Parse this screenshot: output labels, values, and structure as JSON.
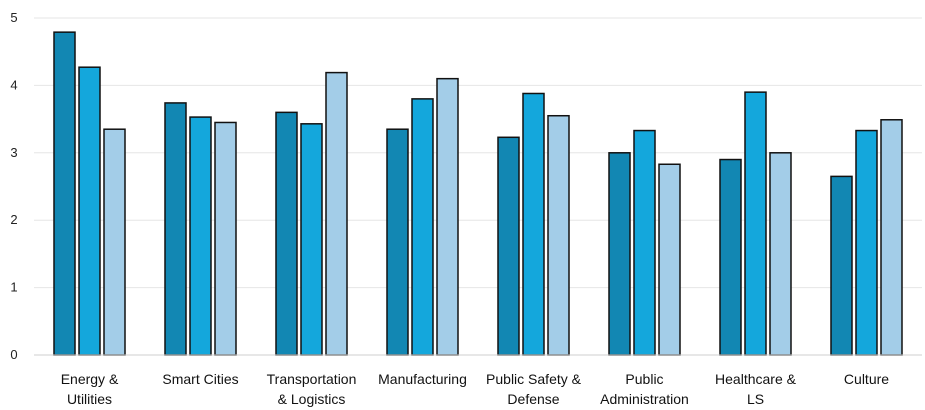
{
  "chart_data": {
    "type": "bar",
    "categories": [
      [
        "Energy &",
        "Utilities"
      ],
      [
        "Smart Cities"
      ],
      [
        "Transportation",
        "& Logistics"
      ],
      [
        "Manufacturing"
      ],
      [
        "Public Safety &",
        "Defense"
      ],
      [
        "Public",
        "Administration"
      ],
      [
        "Healthcare &",
        "LS"
      ],
      [
        "Culture"
      ]
    ],
    "series": [
      {
        "values": [
          4.79,
          3.74,
          3.6,
          3.35,
          3.23,
          3.0,
          2.9,
          2.65
        ],
        "color": "#1287b3"
      },
      {
        "values": [
          4.27,
          3.53,
          3.43,
          3.8,
          3.88,
          3.33,
          3.9,
          3.33
        ],
        "color": "#14a7dc"
      },
      {
        "values": [
          3.35,
          3.45,
          4.19,
          4.1,
          3.55,
          2.83,
          3.0,
          3.49
        ],
        "color": "#a3cde8"
      }
    ],
    "ylim": [
      0,
      5
    ],
    "yticks": [
      "0",
      "1",
      "2",
      "3",
      "4",
      "5"
    ],
    "grid": true,
    "legend": "none"
  }
}
